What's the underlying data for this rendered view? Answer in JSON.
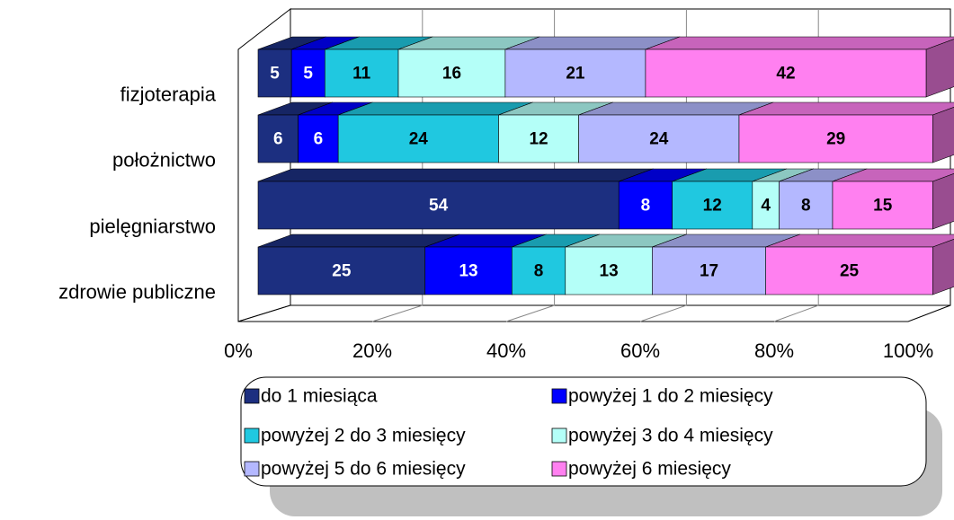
{
  "chart_data": {
    "type": "bar_stacked_horizontal_3d",
    "categories": [
      "fizjoterapia",
      "położnictwo",
      "pielęgniarstwo",
      "zdrowie publiczne"
    ],
    "series": [
      {
        "name": "do 1 miesiąca",
        "color": "#1c2f80",
        "values": [
          5,
          6,
          54,
          25
        ]
      },
      {
        "name": "powyżej 1 do 2 miesięcy",
        "color": "#0000ff",
        "values": [
          5,
          6,
          8,
          13
        ]
      },
      {
        "name": "powyżej 2 do 3 miesięcy",
        "color": "#20c8e0",
        "values": [
          11,
          24,
          12,
          8
        ]
      },
      {
        "name": "powyżej 3 do 4 miesięcy",
        "color": "#b4fff8",
        "values": [
          16,
          12,
          4,
          13
        ]
      },
      {
        "name": "powyżej 5 do 6 miesięcy",
        "color": "#b4b8ff",
        "values": [
          21,
          24,
          8,
          17
        ]
      },
      {
        "name": "powyżej 6 miesięcy",
        "color": "#ff80f0",
        "values": [
          42,
          29,
          15,
          25
        ]
      }
    ],
    "xlim": [
      0,
      100
    ],
    "xticks": [
      {
        "value": 0,
        "label": "0%"
      },
      {
        "value": 20,
        "label": "20%"
      },
      {
        "value": 40,
        "label": "40%"
      },
      {
        "value": 60,
        "label": "60%"
      },
      {
        "value": 80,
        "label": "80%"
      },
      {
        "value": 100,
        "label": "100%"
      }
    ],
    "grid": true
  }
}
